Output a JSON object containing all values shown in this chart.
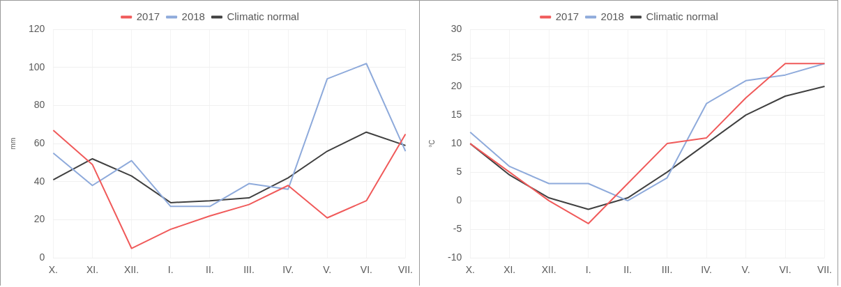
{
  "chart_data": [
    {
      "type": "line",
      "ylabel": "mm",
      "categories": [
        "X.",
        "XI.",
        "XII.",
        "I.",
        "II.",
        "III.",
        "IV.",
        "V.",
        "VI.",
        "VII."
      ],
      "series": [
        {
          "name": "2017",
          "color": "#f05a5a",
          "values": [
            67,
            49,
            5,
            15,
            22,
            28,
            38,
            21,
            30,
            65
          ]
        },
        {
          "name": "2018",
          "color": "#8eaadb",
          "values": [
            55,
            38,
            51,
            27,
            27,
            39,
            36,
            94,
            102,
            56
          ]
        },
        {
          "name": "Climatic normal",
          "color": "#404040",
          "values": [
            41,
            52,
            43,
            29,
            30,
            31.5,
            42,
            56,
            66,
            59
          ]
        }
      ],
      "ylim": [
        0,
        120
      ],
      "yticks": [
        0,
        20,
        40,
        60,
        80,
        100,
        120
      ],
      "grid": true,
      "legend": "top",
      "marker": "none"
    },
    {
      "type": "line",
      "ylabel": "°C",
      "categories": [
        "X.",
        "XI.",
        "XII.",
        "I.",
        "II.",
        "III.",
        "IV.",
        "V.",
        "VI.",
        "VII."
      ],
      "series": [
        {
          "name": "2017",
          "color": "#f05a5a",
          "values": [
            10,
            5,
            0,
            -4,
            3,
            10,
            11,
            18,
            24,
            24
          ]
        },
        {
          "name": "2018",
          "color": "#8eaadb",
          "values": [
            12,
            6,
            3,
            3,
            0,
            4,
            17,
            21,
            22,
            24
          ]
        },
        {
          "name": "Climatic normal",
          "color": "#404040",
          "values": [
            10,
            4.5,
            0.5,
            -1.5,
            0.5,
            5,
            10,
            15,
            18.3,
            20
          ]
        }
      ],
      "ylim": [
        -10,
        30
      ],
      "yticks": [
        -10,
        -5,
        0,
        5,
        10,
        15,
        20,
        25,
        30
      ],
      "grid": true,
      "legend": "top",
      "marker": "none"
    }
  ]
}
